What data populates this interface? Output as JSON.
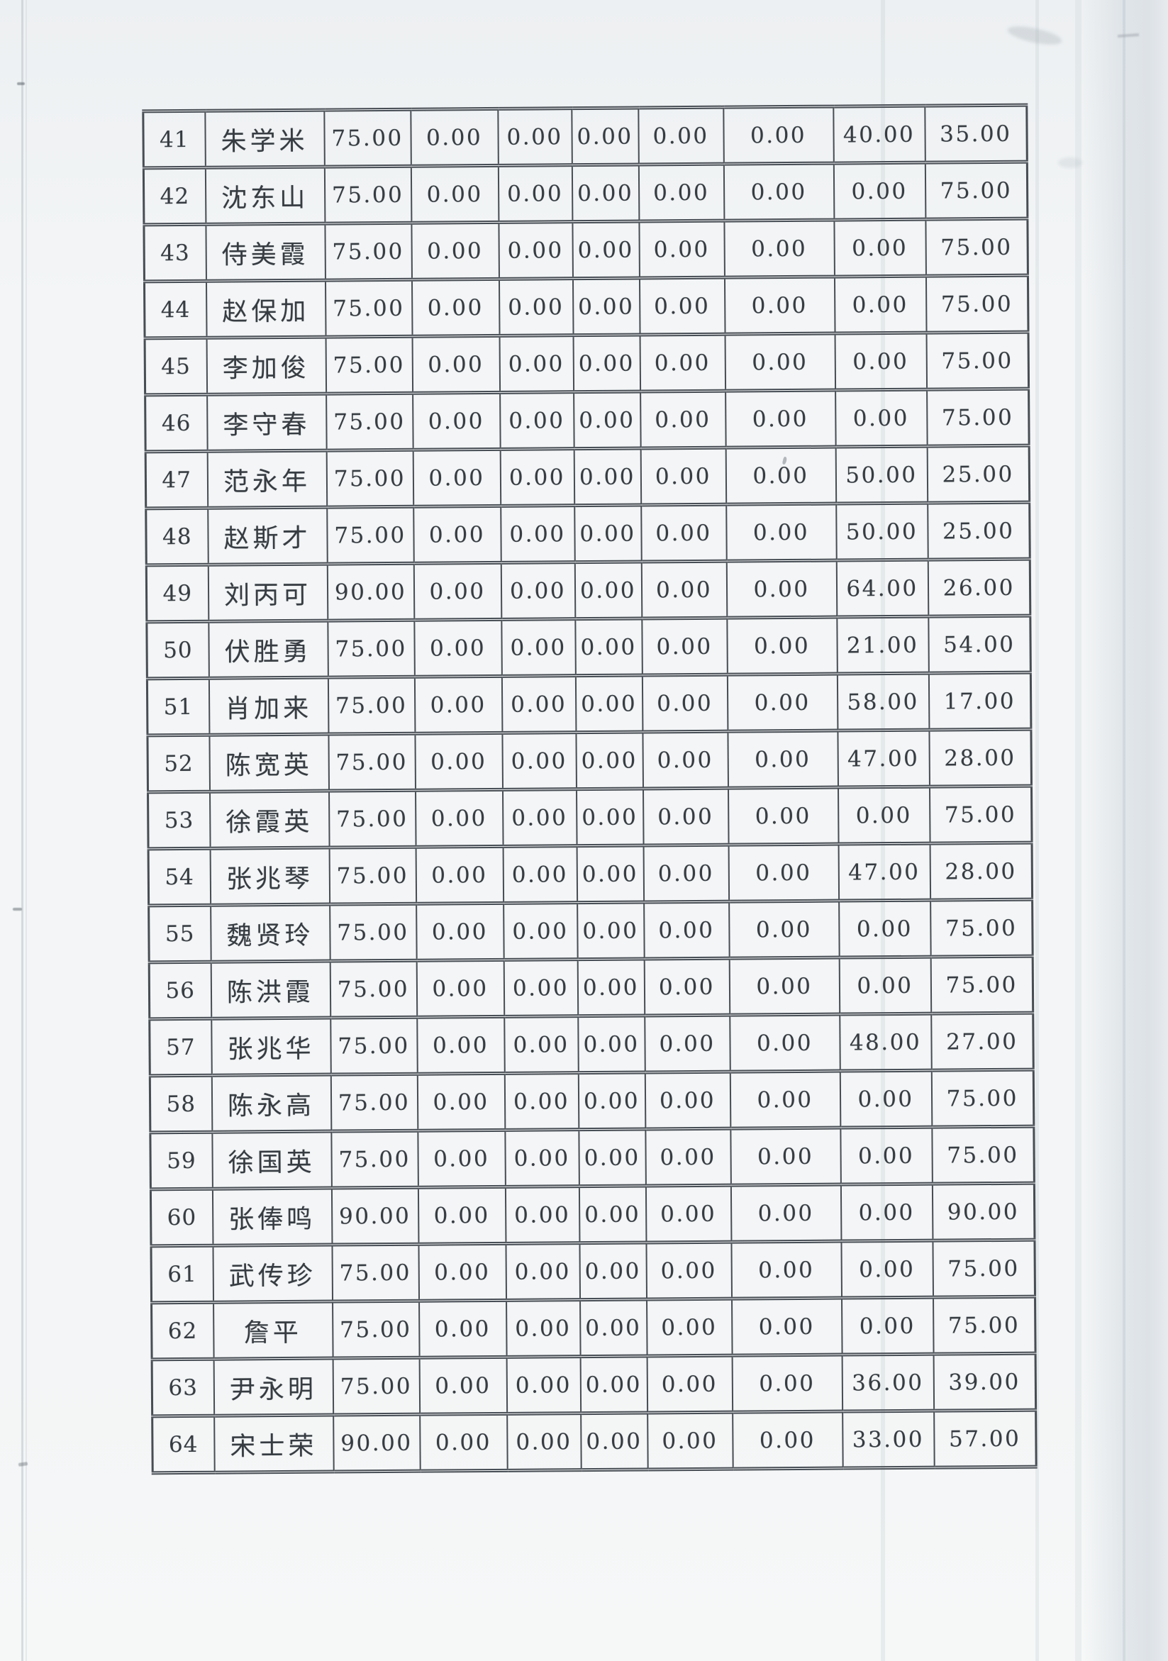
{
  "colors": {
    "paper": "#f3f5f6",
    "page_background": "#edf0f2",
    "table_line": "#474d54",
    "ink": "#363c42",
    "shadow_band": "#dde2e7"
  },
  "table": {
    "rows": [
      {
        "no": "41",
        "name": "朱学米",
        "values": [
          "75.00",
          "0.00",
          "0.00",
          "0.00",
          "0.00",
          "0.00",
          "40.00",
          "35.00"
        ]
      },
      {
        "no": "42",
        "name": "沈东山",
        "values": [
          "75.00",
          "0.00",
          "0.00",
          "0.00",
          "0.00",
          "0.00",
          "0.00",
          "75.00"
        ]
      },
      {
        "no": "43",
        "name": "侍美霞",
        "values": [
          "75.00",
          "0.00",
          "0.00",
          "0.00",
          "0.00",
          "0.00",
          "0.00",
          "75.00"
        ]
      },
      {
        "no": "44",
        "name": "赵保加",
        "values": [
          "75.00",
          "0.00",
          "0.00",
          "0.00",
          "0.00",
          "0.00",
          "0.00",
          "75.00"
        ]
      },
      {
        "no": "45",
        "name": "李加俊",
        "values": [
          "75.00",
          "0.00",
          "0.00",
          "0.00",
          "0.00",
          "0.00",
          "0.00",
          "75.00"
        ]
      },
      {
        "no": "46",
        "name": "李守春",
        "values": [
          "75.00",
          "0.00",
          "0.00",
          "0.00",
          "0.00",
          "0.00",
          "0.00",
          "75.00"
        ]
      },
      {
        "no": "47",
        "name": "范永年",
        "values": [
          "75.00",
          "0.00",
          "0.00",
          "0.00",
          "0.00",
          "0.00",
          "50.00",
          "25.00"
        ]
      },
      {
        "no": "48",
        "name": "赵斯才",
        "values": [
          "75.00",
          "0.00",
          "0.00",
          "0.00",
          "0.00",
          "0.00",
          "50.00",
          "25.00"
        ]
      },
      {
        "no": "49",
        "name": "刘丙可",
        "values": [
          "90.00",
          "0.00",
          "0.00",
          "0.00",
          "0.00",
          "0.00",
          "64.00",
          "26.00"
        ]
      },
      {
        "no": "50",
        "name": "伏胜勇",
        "values": [
          "75.00",
          "0.00",
          "0.00",
          "0.00",
          "0.00",
          "0.00",
          "21.00",
          "54.00"
        ]
      },
      {
        "no": "51",
        "name": "肖加来",
        "values": [
          "75.00",
          "0.00",
          "0.00",
          "0.00",
          "0.00",
          "0.00",
          "58.00",
          "17.00"
        ]
      },
      {
        "no": "52",
        "name": "陈宽英",
        "values": [
          "75.00",
          "0.00",
          "0.00",
          "0.00",
          "0.00",
          "0.00",
          "47.00",
          "28.00"
        ]
      },
      {
        "no": "53",
        "name": "徐霞英",
        "values": [
          "75.00",
          "0.00",
          "0.00",
          "0.00",
          "0.00",
          "0.00",
          "0.00",
          "75.00"
        ]
      },
      {
        "no": "54",
        "name": "张兆琴",
        "values": [
          "75.00",
          "0.00",
          "0.00",
          "0.00",
          "0.00",
          "0.00",
          "47.00",
          "28.00"
        ]
      },
      {
        "no": "55",
        "name": "魏贤玲",
        "values": [
          "75.00",
          "0.00",
          "0.00",
          "0.00",
          "0.00",
          "0.00",
          "0.00",
          "75.00"
        ]
      },
      {
        "no": "56",
        "name": "陈洪霞",
        "values": [
          "75.00",
          "0.00",
          "0.00",
          "0.00",
          "0.00",
          "0.00",
          "0.00",
          "75.00"
        ]
      },
      {
        "no": "57",
        "name": "张兆华",
        "values": [
          "75.00",
          "0.00",
          "0.00",
          "0.00",
          "0.00",
          "0.00",
          "48.00",
          "27.00"
        ]
      },
      {
        "no": "58",
        "name": "陈永高",
        "values": [
          "75.00",
          "0.00",
          "0.00",
          "0.00",
          "0.00",
          "0.00",
          "0.00",
          "75.00"
        ]
      },
      {
        "no": "59",
        "name": "徐国英",
        "values": [
          "75.00",
          "0.00",
          "0.00",
          "0.00",
          "0.00",
          "0.00",
          "0.00",
          "75.00"
        ]
      },
      {
        "no": "60",
        "name": "张俸鸣",
        "values": [
          "90.00",
          "0.00",
          "0.00",
          "0.00",
          "0.00",
          "0.00",
          "0.00",
          "90.00"
        ]
      },
      {
        "no": "61",
        "name": "武传珍",
        "values": [
          "75.00",
          "0.00",
          "0.00",
          "0.00",
          "0.00",
          "0.00",
          "0.00",
          "75.00"
        ]
      },
      {
        "no": "62",
        "name": "詹平",
        "values": [
          "75.00",
          "0.00",
          "0.00",
          "0.00",
          "0.00",
          "0.00",
          "0.00",
          "75.00"
        ]
      },
      {
        "no": "63",
        "name": "尹永明",
        "values": [
          "75.00",
          "0.00",
          "0.00",
          "0.00",
          "0.00",
          "0.00",
          "36.00",
          "39.00"
        ]
      },
      {
        "no": "64",
        "name": "宋士荣",
        "values": [
          "90.00",
          "0.00",
          "0.00",
          "0.00",
          "0.00",
          "0.00",
          "33.00",
          "57.00"
        ]
      }
    ]
  }
}
